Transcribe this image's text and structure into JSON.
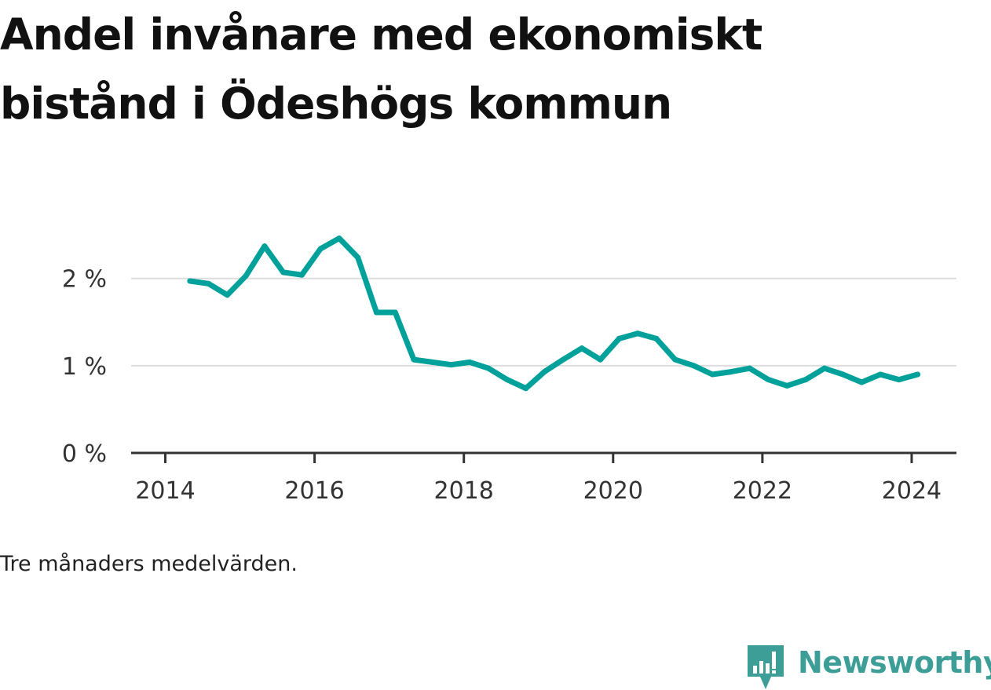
{
  "title": "Andel invånare med ekonomiskt bistånd i Ödeshögs kommun",
  "note": "Tre månaders medelvärden.",
  "brand": {
    "name": "Newsworthy",
    "icon": "newsworthy-chart-icon",
    "color": "#3d9e98"
  },
  "colors": {
    "line": "#00a19a",
    "grid": "#dddddd",
    "axis": "#333333"
  },
  "chart_data": {
    "type": "line",
    "title": "Andel invånare med ekonomiskt bistånd i Ödeshögs kommun",
    "xlabel": "",
    "ylabel": "",
    "x_ticks": [
      {
        "value": 2014.0,
        "label": "2014"
      },
      {
        "value": 2016.0,
        "label": "2016"
      },
      {
        "value": 2018.0,
        "label": "2018"
      },
      {
        "value": 2020.0,
        "label": "2020"
      },
      {
        "value": 2022.0,
        "label": "2022"
      },
      {
        "value": 2024.0,
        "label": "2024"
      }
    ],
    "y_ticks": [
      {
        "value": 0,
        "label": "0 %"
      },
      {
        "value": 1,
        "label": "1 %"
      },
      {
        "value": 2,
        "label": "2 %"
      }
    ],
    "xlim": [
      2013.7,
      2024.6
    ],
    "ylim": [
      0,
      2.6
    ],
    "grid": true,
    "series": [
      {
        "x": [
          2014.33,
          2014.58,
          2014.83,
          2015.08,
          2015.33,
          2015.58,
          2015.83,
          2016.08,
          2016.33,
          2016.58,
          2016.83,
          2017.08,
          2017.33,
          2017.58,
          2017.83,
          2018.08,
          2018.33,
          2018.58,
          2018.83,
          2019.08,
          2019.33,
          2019.58,
          2019.83,
          2020.08,
          2020.33,
          2020.58,
          2020.83,
          2021.08,
          2021.33,
          2021.58,
          2021.83,
          2022.08,
          2022.33,
          2022.58,
          2022.83,
          2023.08,
          2023.33,
          2023.58,
          2023.83,
          2024.08
        ],
        "values": [
          1.97,
          1.94,
          1.81,
          2.03,
          2.37,
          2.07,
          2.04,
          2.34,
          2.46,
          2.24,
          1.61,
          1.61,
          1.07,
          1.04,
          1.01,
          1.04,
          0.97,
          0.84,
          0.74,
          0.93,
          1.07,
          1.2,
          1.07,
          1.31,
          1.37,
          1.31,
          1.07,
          1.0,
          0.9,
          0.93,
          0.97,
          0.84,
          0.77,
          0.84,
          0.97,
          0.9,
          0.81,
          0.9,
          0.84,
          0.9
        ]
      }
    ]
  }
}
